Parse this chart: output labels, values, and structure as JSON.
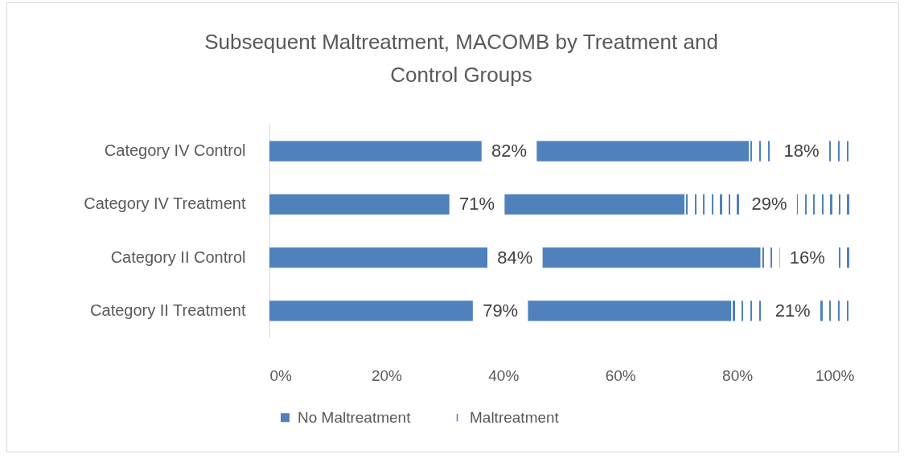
{
  "chart_data": {
    "type": "bar",
    "orientation": "horizontal",
    "stacked": true,
    "title": "Subsequent Maltreatment, MACOMB by Treatment and Control Groups",
    "categories": [
      "Category IV Control",
      "Category IV Treatment",
      "Category II Control",
      "Category II Treatment"
    ],
    "series": [
      {
        "name": "No Maltreatment",
        "color": "#4f81bd",
        "values": [
          82,
          71,
          84,
          79
        ],
        "value_labels": [
          "82%",
          "71%",
          "84%",
          "79%"
        ]
      },
      {
        "name": "Maltreatment",
        "color": "#4f81bd",
        "values": [
          18,
          29,
          16,
          21
        ],
        "value_labels": [
          "18%",
          "29%",
          "16%",
          "21%"
        ]
      }
    ],
    "xlim": [
      0,
      100
    ],
    "xticks": [
      {
        "value": 0,
        "label": "0%"
      },
      {
        "value": 20,
        "label": "20%"
      },
      {
        "value": 40,
        "label": "40%"
      },
      {
        "value": 60,
        "label": "60%"
      },
      {
        "value": 80,
        "label": "80%"
      },
      {
        "value": 100,
        "label": "100%"
      }
    ],
    "legend": "bottom"
  }
}
